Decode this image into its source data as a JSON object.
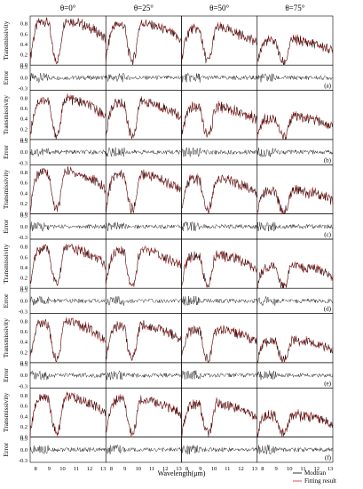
{
  "chart_data": {
    "type": "line",
    "columns": [
      "θ=0°",
      "θ=25°",
      "θ=50°",
      "θ=75°"
    ],
    "rows": [
      "(a)",
      "(b)",
      "(c)",
      "(d)",
      "(e)",
      "(f)"
    ],
    "xlabel": "Wavelength(μm)",
    "x_ticks": [
      "8",
      "9",
      "10",
      "11",
      "12",
      "13"
    ],
    "x_range": [
      7.6,
      13.2
    ],
    "transmissivity": {
      "ylabel": "Transmissivity",
      "ylim": [
        0,
        0.95
      ],
      "y_ticks": [
        "0.0",
        "0.2",
        "0.4",
        "0.6",
        "0.8"
      ]
    },
    "error": {
      "ylabel": "Error",
      "ylim": [
        -0.35,
        0.35
      ],
      "y_ticks": [
        "0.3",
        "0.0",
        "-0.3"
      ]
    },
    "legend": [
      {
        "label": "Modtran",
        "color": "#000000"
      },
      {
        "label": "Fitting result",
        "color": "#e02020"
      }
    ],
    "series_colors": {
      "model": "#000000",
      "fit": "#e02020",
      "error": "#000000"
    },
    "curve_shape": {
      "x": [
        7.6,
        7.8,
        8.0,
        8.2,
        8.5,
        8.8,
        9.0,
        9.2,
        9.4,
        9.6,
        9.8,
        10.0,
        10.2,
        10.5,
        11.0,
        11.5,
        12.0,
        12.5,
        13.0,
        13.2
      ],
      "row_scale": [
        1.0,
        0.9,
        0.95,
        0.9,
        0.9,
        0.9
      ],
      "column_scale": [
        1.0,
        0.93,
        0.82,
        0.55
      ],
      "base_transmissivity": [
        0.1,
        0.45,
        0.7,
        0.82,
        0.85,
        0.84,
        0.8,
        0.4,
        0.15,
        0.08,
        0.25,
        0.7,
        0.88,
        0.87,
        0.83,
        0.78,
        0.72,
        0.65,
        0.55,
        0.5
      ]
    }
  }
}
